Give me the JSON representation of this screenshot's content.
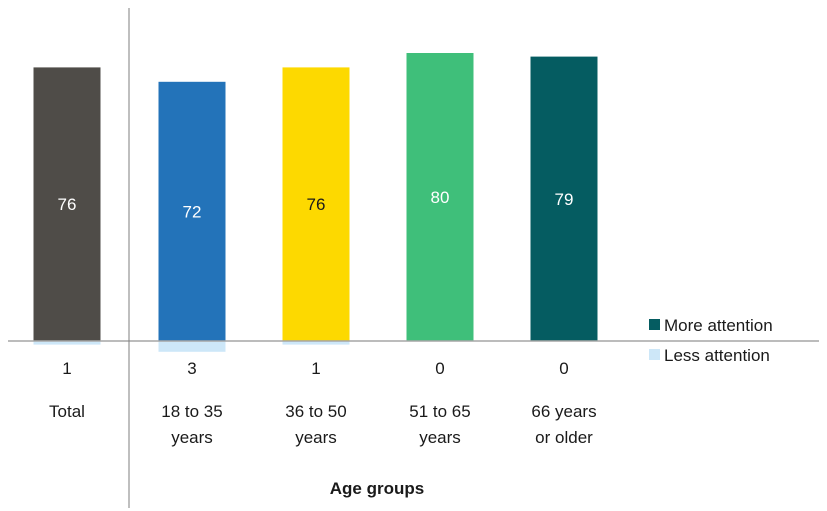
{
  "chart_data": {
    "type": "bar",
    "categories": [
      {
        "name": "Total",
        "lines": [
          "Total"
        ]
      },
      {
        "name": "18 to 35 years",
        "lines": [
          "18 to 35",
          "years"
        ]
      },
      {
        "name": "36 to 50 years",
        "lines": [
          "36 to 50",
          "years"
        ]
      },
      {
        "name": "51 to 65 years",
        "lines": [
          "51 to 65",
          "years"
        ]
      },
      {
        "name": "66 years or older",
        "lines": [
          "66 years",
          "or older"
        ]
      }
    ],
    "series": [
      {
        "name": "More attention",
        "values": [
          76,
          72,
          76,
          80,
          79
        ],
        "bar_colors": [
          "#4f4c48",
          "#2373b9",
          "#fdd900",
          "#3fbf7a",
          "#055c61"
        ],
        "label_colors": [
          "#ffffff",
          "#ffffff",
          "#1a1a1a",
          "#ffffff",
          "#ffffff"
        ]
      },
      {
        "name": "Less attention",
        "values": [
          1,
          3,
          1,
          0,
          0
        ],
        "color": "#cde7f8"
      }
    ],
    "xlabel": "Age groups",
    "ylabel": "",
    "legend": [
      {
        "name": "More attention",
        "color": "#055c61"
      },
      {
        "name": "Less attention",
        "color": "#cde7f8"
      }
    ],
    "legend_position": "right",
    "grid": false
  }
}
